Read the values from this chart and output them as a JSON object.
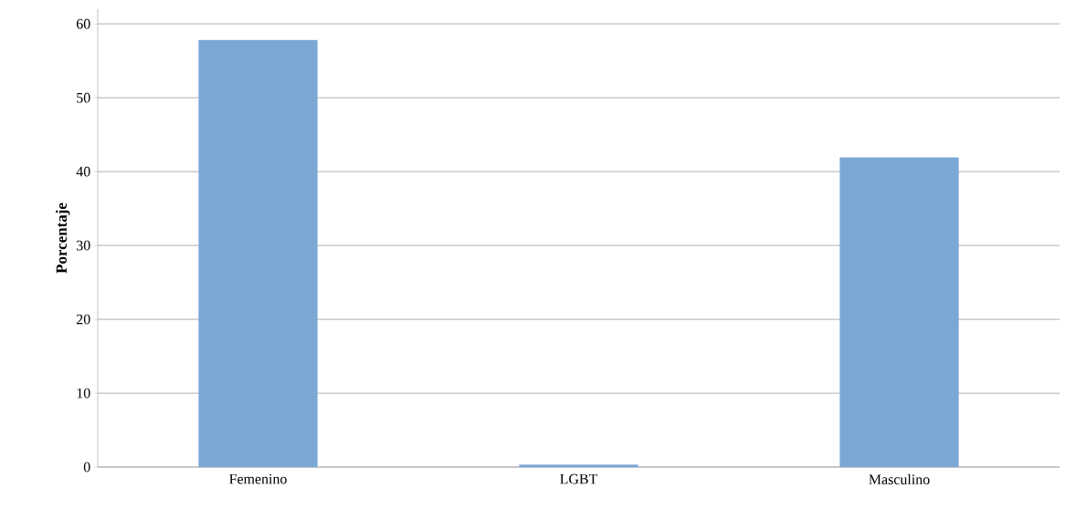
{
  "chart_data": {
    "type": "bar",
    "ylabel": "Porcentaje",
    "categories": [
      "Femenino",
      "LGBT",
      "Masculino"
    ],
    "values": [
      57.8,
      0.3,
      41.9
    ],
    "color": "#7ba7d5",
    "ylim": [
      0,
      62
    ],
    "yticks": [
      0,
      10,
      20,
      30,
      40,
      50,
      60
    ],
    "grid": "y"
  }
}
